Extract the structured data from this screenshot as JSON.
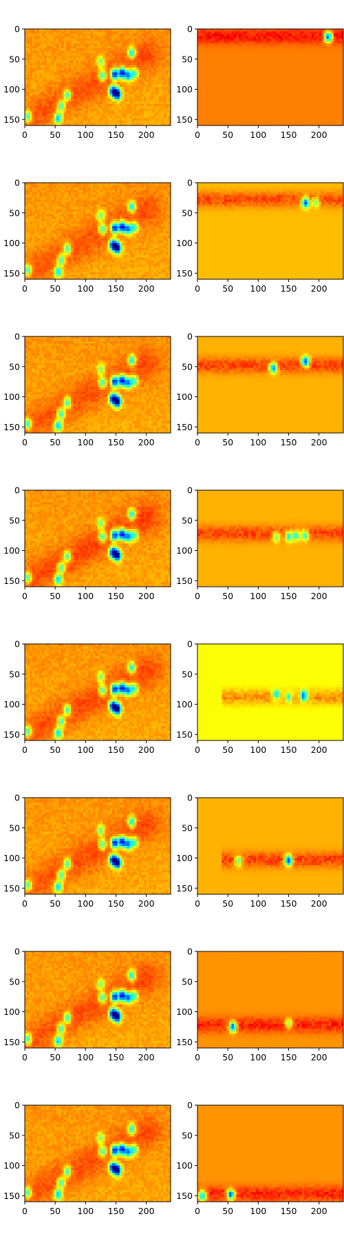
{
  "figure": {
    "rows": 8,
    "cols": 2
  },
  "chart_data": {
    "type": "heatmap",
    "colormap": "jet",
    "xlim": [
      0,
      240
    ],
    "ylim": [
      160,
      0
    ],
    "xticks": [
      "0",
      "50",
      "100",
      "150",
      "200"
    ],
    "yticks": [
      "0",
      "50",
      "100",
      "150"
    ],
    "xtick_values": [
      0,
      50,
      100,
      150,
      200
    ],
    "ytick_values": [
      0,
      50,
      100,
      150
    ],
    "grid": false,
    "left_panel_features": {
      "diagonal_band": {
        "x_start": 5,
        "y_start": 150,
        "x_end": 200,
        "y_end": 45
      },
      "spots": [
        {
          "x": 125,
          "y": 55,
          "v": 0.55
        },
        {
          "x": 128,
          "y": 77,
          "v": 0.45
        },
        {
          "x": 148,
          "y": 75,
          "v": 0.15
        },
        {
          "x": 160,
          "y": 73,
          "v": 0.15
        },
        {
          "x": 170,
          "y": 77,
          "v": 0.3
        },
        {
          "x": 176,
          "y": 40,
          "v": 0.4
        },
        {
          "x": 180,
          "y": 74,
          "v": 0.45
        },
        {
          "x": 145,
          "y": 103,
          "v": 0.15
        },
        {
          "x": 153,
          "y": 108,
          "v": 0.1
        },
        {
          "x": 55,
          "y": 148,
          "v": 0.4
        },
        {
          "x": 60,
          "y": 128,
          "v": 0.45
        },
        {
          "x": 70,
          "y": 110,
          "v": 0.45
        },
        {
          "x": 5,
          "y": 145,
          "v": 0.45
        }
      ]
    },
    "panels": [
      {
        "row": 0,
        "left_gain": 1.0,
        "right": {
          "bg": 0.75,
          "band_y": 12,
          "band_x": [
            0,
            240
          ],
          "spots": [
            {
              "x": 215,
              "y": 13,
              "v": 0.2
            }
          ]
        }
      },
      {
        "row": 1,
        "left_gain": 0.95,
        "right": {
          "bg": 0.69,
          "band_y": 28,
          "band_x": [
            0,
            240
          ],
          "spots": [
            {
              "x": 178,
              "y": 33,
              "v": 0.2
            },
            {
              "x": 195,
              "y": 32,
              "v": 0.5
            }
          ]
        }
      },
      {
        "row": 2,
        "left_gain": 1.0,
        "right": {
          "bg": 0.7,
          "band_y": 48,
          "band_x": [
            0,
            240
          ],
          "spots": [
            {
              "x": 125,
              "y": 52,
              "v": 0.25
            },
            {
              "x": 178,
              "y": 42,
              "v": 0.2
            }
          ]
        }
      },
      {
        "row": 3,
        "left_gain": 1.15,
        "right": {
          "bg": 0.7,
          "band_y": 72,
          "band_x": [
            0,
            240
          ],
          "spots": [
            {
              "x": 130,
              "y": 77,
              "v": 0.45
            },
            {
              "x": 150,
              "y": 77,
              "v": 0.4
            },
            {
              "x": 162,
              "y": 75,
              "v": 0.4
            },
            {
              "x": 177,
              "y": 75,
              "v": 0.4
            }
          ]
        }
      },
      {
        "row": 4,
        "left_gain": 1.05,
        "right": {
          "bg": 0.62,
          "band_y": 88,
          "band_x": [
            40,
            240
          ],
          "spots": [
            {
              "x": 130,
              "y": 84,
              "v": 0.35
            },
            {
              "x": 150,
              "y": 88,
              "v": 0.4
            },
            {
              "x": 175,
              "y": 86,
              "v": 0.2
            }
          ]
        }
      },
      {
        "row": 5,
        "left_gain": 1.0,
        "right": {
          "bg": 0.7,
          "band_y": 103,
          "band_x": [
            40,
            240
          ],
          "spots": [
            {
              "x": 68,
              "y": 105,
              "v": 0.45
            },
            {
              "x": 150,
              "y": 104,
              "v": 0.15
            }
          ]
        }
      },
      {
        "row": 6,
        "left_gain": 1.0,
        "right": {
          "bg": 0.73,
          "band_y": 122,
          "band_x": [
            0,
            240
          ],
          "spots": [
            {
              "x": 58,
              "y": 125,
              "v": 0.2
            },
            {
              "x": 150,
              "y": 120,
              "v": 0.5
            }
          ]
        }
      },
      {
        "row": 7,
        "left_gain": 1.0,
        "right": {
          "bg": 0.73,
          "band_y": 147,
          "band_x": [
            0,
            240
          ],
          "spots": [
            {
              "x": 8,
              "y": 150,
              "v": 0.3
            },
            {
              "x": 55,
              "y": 148,
              "v": 0.2
            }
          ]
        }
      }
    ]
  }
}
